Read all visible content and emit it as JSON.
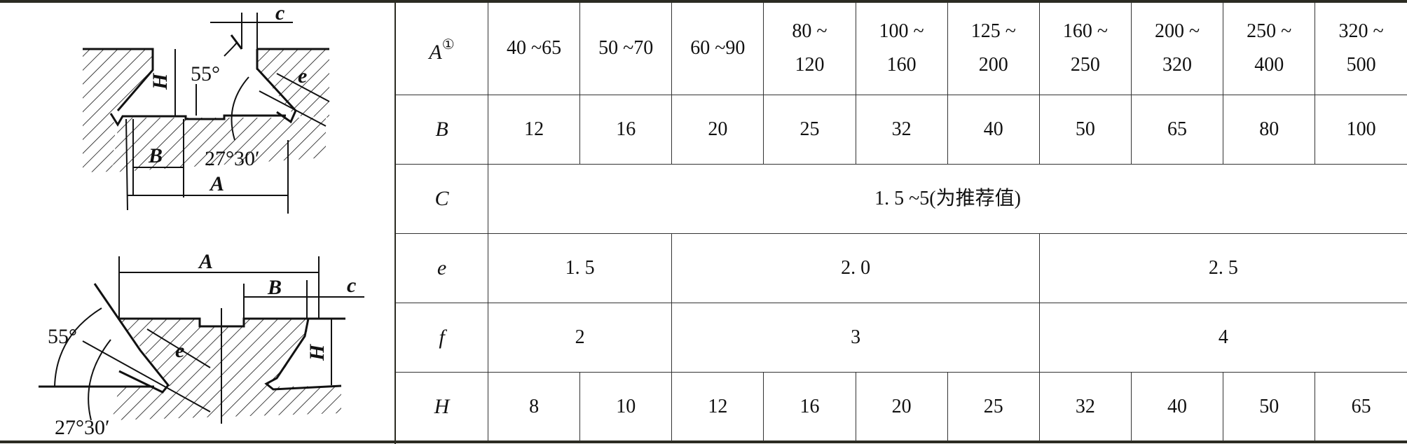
{
  "drawing": {
    "labels": {
      "c": "c",
      "angle55": "55°",
      "H": "H",
      "e": "e",
      "B": "B",
      "angle2730": "27°30′",
      "A": "A"
    }
  },
  "table": {
    "row_labels": {
      "A": "A",
      "A_note": "①",
      "B": "B",
      "C": "C",
      "e": "e",
      "f": "f",
      "H": "H"
    },
    "A_values": [
      [
        "40 ~65"
      ],
      [
        "50 ~70"
      ],
      [
        "60 ~90"
      ],
      [
        "80 ~",
        "120"
      ],
      [
        "100 ~",
        "160"
      ],
      [
        "125 ~",
        "200"
      ],
      [
        "160 ~",
        "250"
      ],
      [
        "200 ~",
        "320"
      ],
      [
        "250 ~",
        "400"
      ],
      [
        "320 ~",
        "500"
      ]
    ],
    "B_values": [
      "12",
      "16",
      "20",
      "25",
      "32",
      "40",
      "50",
      "65",
      "80",
      "100"
    ],
    "C_value": "1. 5 ~5(为推荐值)",
    "e_values": [
      "1. 5",
      "2. 0",
      "2. 5"
    ],
    "f_values": [
      "2",
      "3",
      "4"
    ],
    "H_values": [
      "8",
      "10",
      "12",
      "16",
      "20",
      "25",
      "32",
      "40",
      "50",
      "65"
    ]
  }
}
